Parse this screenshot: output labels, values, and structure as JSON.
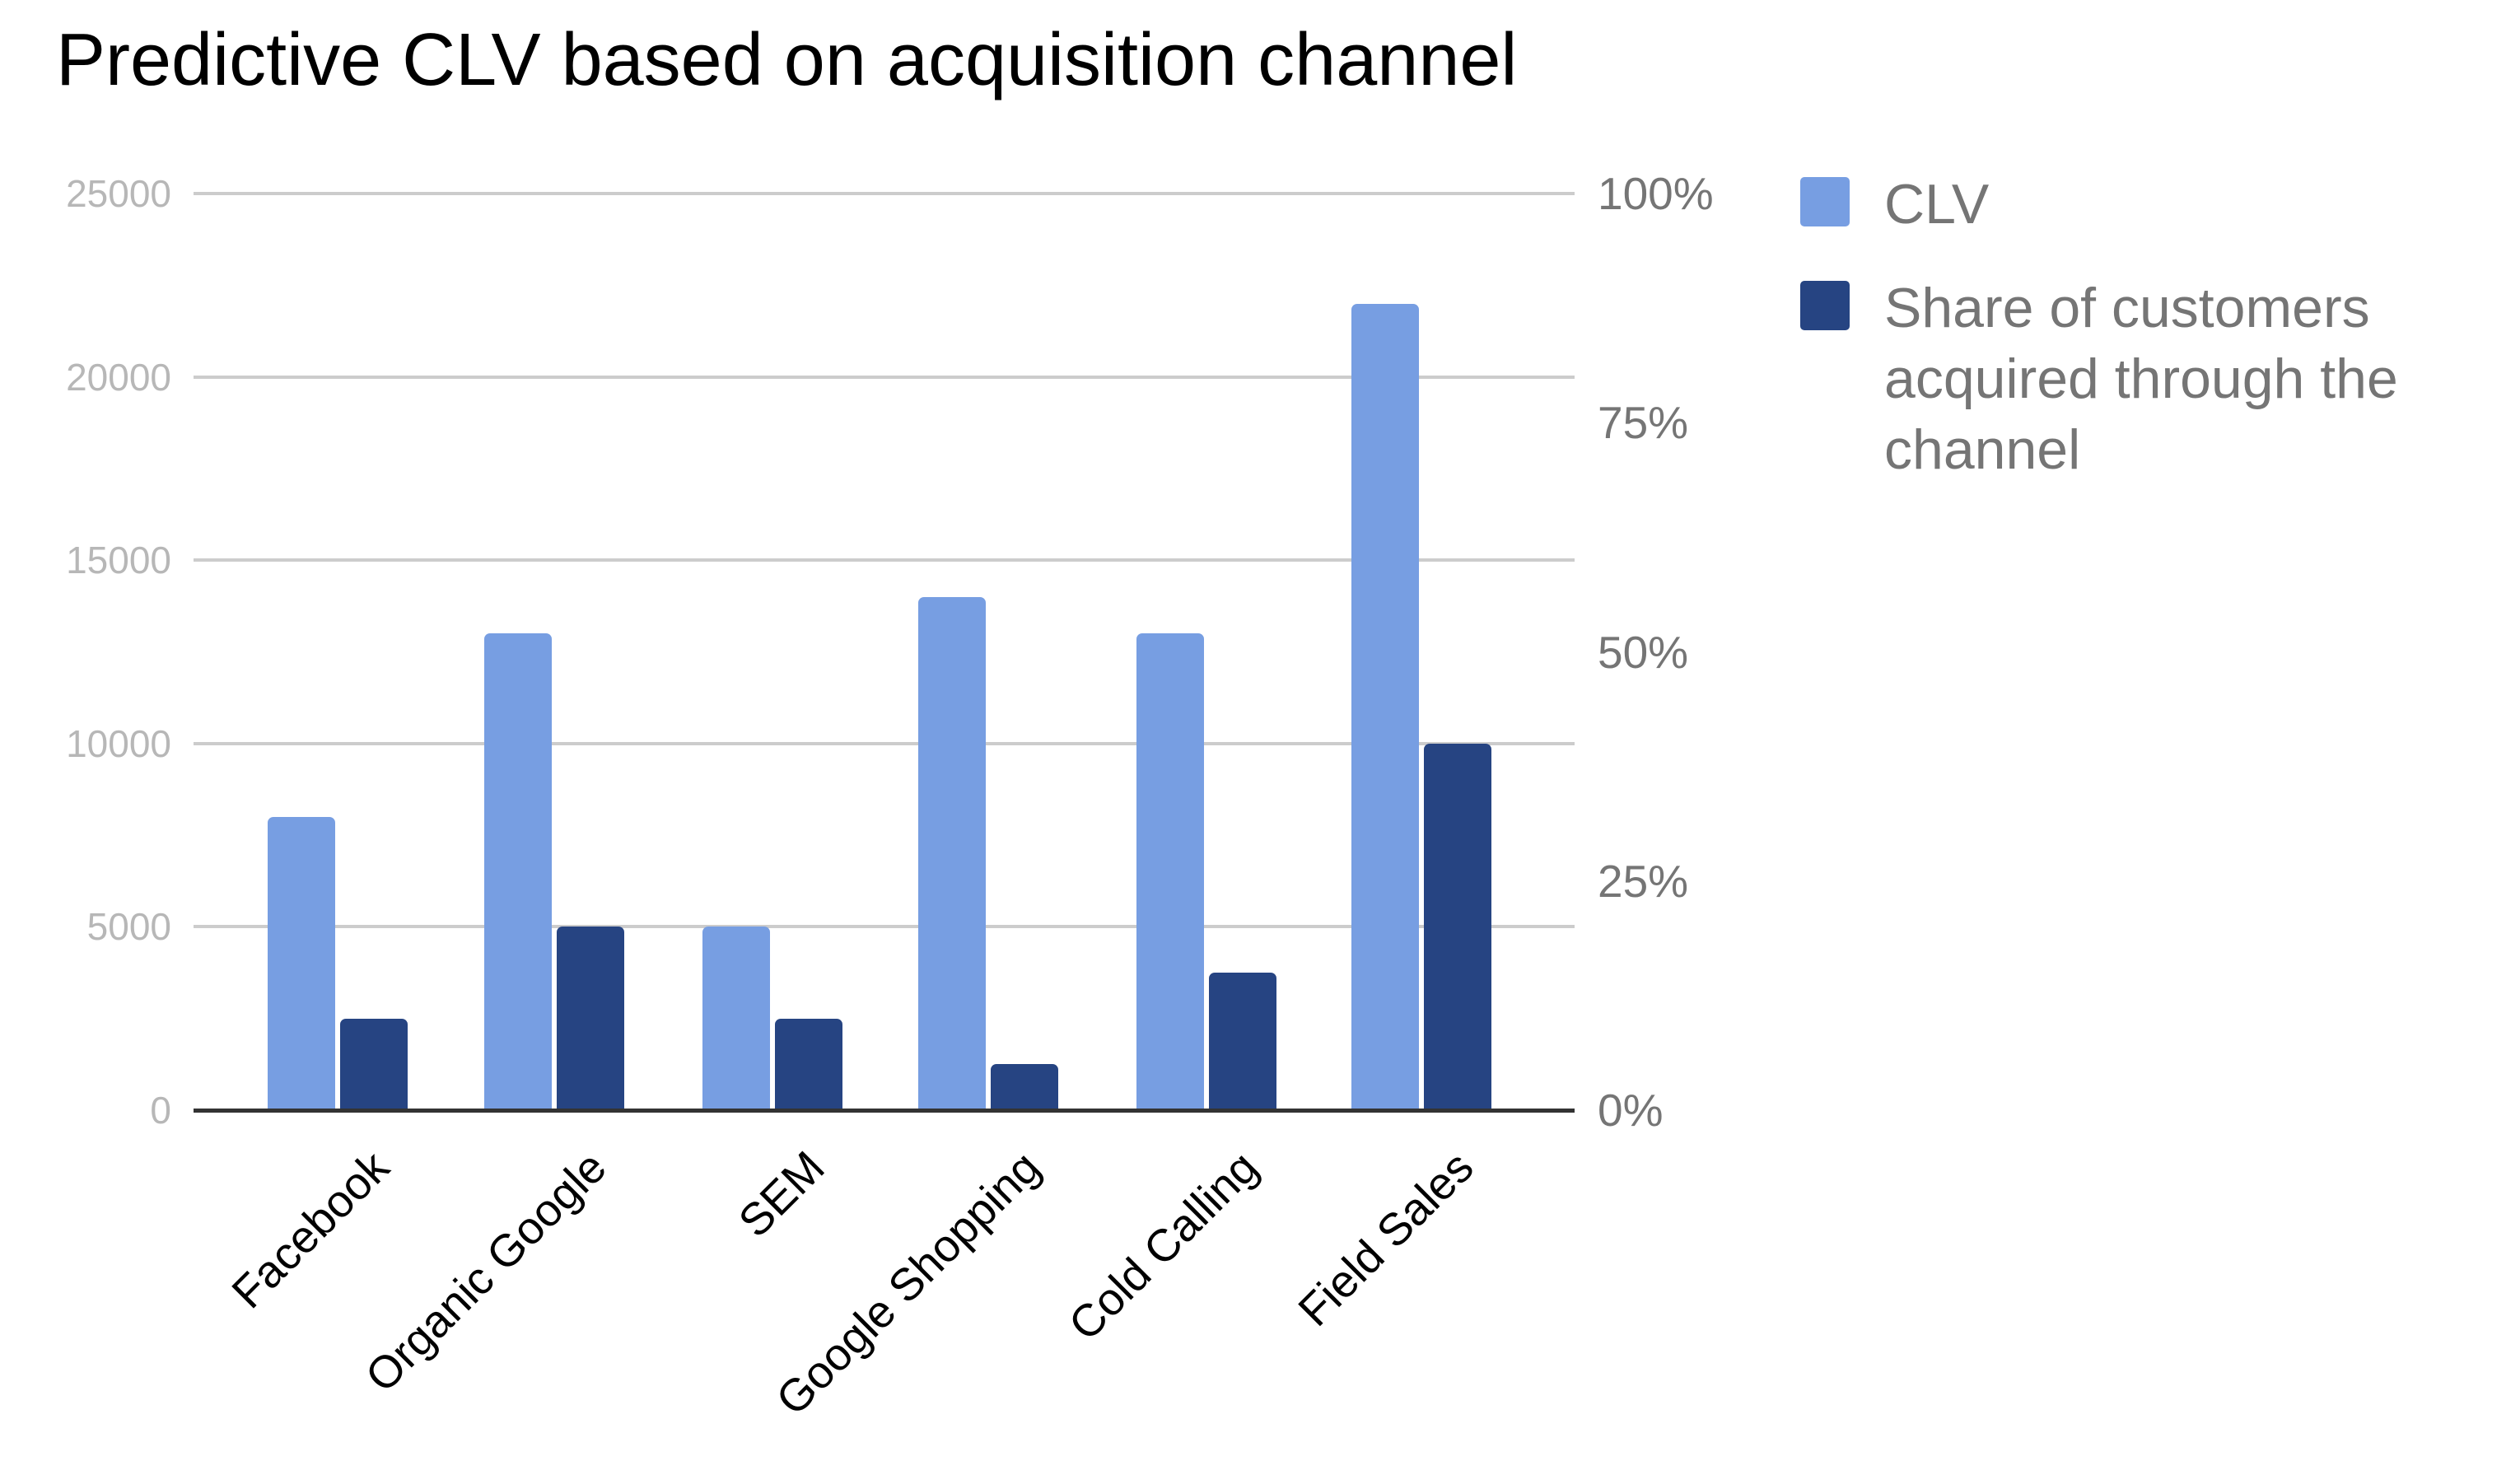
{
  "chart_data": {
    "type": "bar",
    "title": "Predictive CLV based on acquisition channel",
    "xlabel": "",
    "ylabel": "",
    "categories": [
      "Facebook",
      "Organic Google",
      "SEM",
      "Google Shopping",
      "Cold Calling",
      "Field Sales"
    ],
    "series": [
      {
        "name": "CLV",
        "axis": "left",
        "color": "#779ee2",
        "values": [
          8000,
          13000,
          5000,
          14000,
          13000,
          22000
        ]
      },
      {
        "name": "Share of customers acquired through the channel",
        "axis": "right",
        "color": "#264482",
        "values": [
          10,
          20,
          10,
          5,
          15,
          40
        ],
        "unit": "%"
      }
    ],
    "ylim": [
      0,
      25000
    ],
    "y2lim": [
      0,
      100
    ],
    "y_ticks": [
      "0",
      "5000",
      "10000",
      "15000",
      "20000",
      "25000"
    ],
    "y2_ticks": [
      "0%",
      "25%",
      "50%",
      "75%",
      "100%"
    ],
    "grid": true,
    "legend_position": "right"
  },
  "legend": {
    "items": [
      {
        "label": "CLV",
        "color": "#779ee2"
      },
      {
        "label": "Share of customers acquired through the channel",
        "color": "#264482"
      }
    ]
  }
}
